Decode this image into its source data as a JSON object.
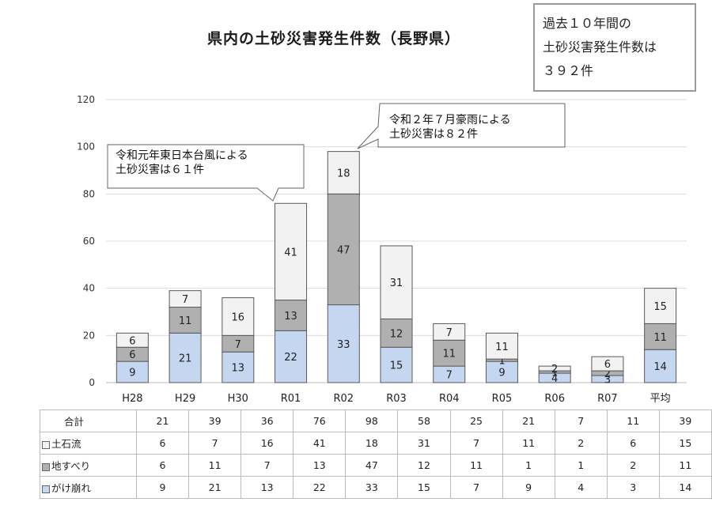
{
  "title": "県内の土砂災害発生件数（長野県）",
  "summary": {
    "line1": "過去１０年間の",
    "line2": "土砂災害発生件数は",
    "line3": "３９２件"
  },
  "callouts": {
    "r01": {
      "line1": "令和元年東日本台風による",
      "line2": "土砂災害は６１件"
    },
    "r02": {
      "line1": "令和２年７月豪雨による",
      "line2": "土砂災害は８２件"
    }
  },
  "colors": {
    "gake": "#c5d6f0",
    "jisuberi": "#b0b0b0",
    "dosekiryu": "#f2f2f2",
    "border": "#595959"
  },
  "chart_data": {
    "type": "bar",
    "stacked": true,
    "title": "県内の土砂災害発生件数（長野県）",
    "categories": [
      "H28",
      "H29",
      "H30",
      "R01",
      "R02",
      "R03",
      "R04",
      "R05",
      "R06",
      "R07",
      "平均"
    ],
    "series": [
      {
        "name": "がけ崩れ",
        "values": [
          9,
          21,
          13,
          22,
          33,
          15,
          7,
          9,
          4,
          3,
          14
        ]
      },
      {
        "name": "地すべり",
        "values": [
          6,
          11,
          7,
          13,
          47,
          12,
          11,
          1,
          1,
          2,
          11
        ]
      },
      {
        "name": "土石流",
        "values": [
          6,
          7,
          16,
          41,
          18,
          31,
          7,
          11,
          2,
          6,
          15
        ]
      }
    ],
    "totals": [
      21,
      39,
      36,
      76,
      98,
      58,
      25,
      21,
      7,
      11,
      39
    ],
    "ylim": [
      0,
      120
    ],
    "yticks": [
      0,
      20,
      40,
      60,
      80,
      100,
      120
    ],
    "grid": true,
    "legend": "table-below"
  },
  "table": {
    "total_label": "合計",
    "rows": [
      {
        "label": "土石流",
        "values": [
          6,
          7,
          16,
          41,
          18,
          31,
          7,
          11,
          2,
          6,
          15
        ]
      },
      {
        "label": "地すべり",
        "values": [
          6,
          11,
          7,
          13,
          47,
          12,
          11,
          1,
          1,
          2,
          11
        ]
      },
      {
        "label": "がけ崩れ",
        "values": [
          9,
          21,
          13,
          22,
          33,
          15,
          7,
          9,
          4,
          3,
          14
        ]
      }
    ]
  }
}
